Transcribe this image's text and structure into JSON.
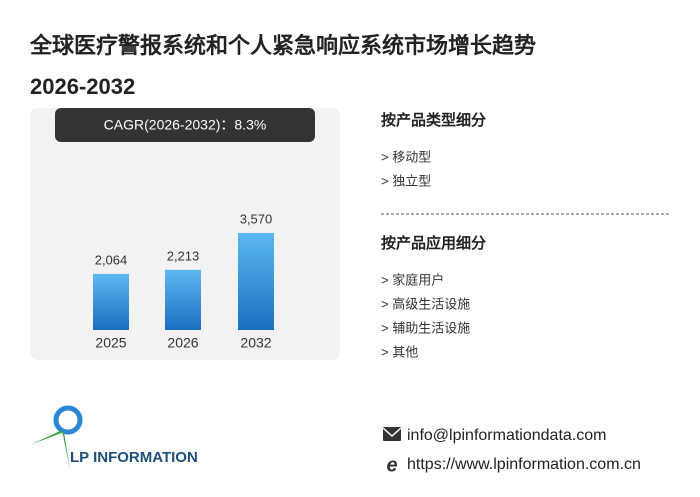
{
  "chart_data": {
    "type": "bar",
    "title": "全球医疗警报系统和个人紧急响应系统市场增长趋势",
    "subtitle": "2026-2032",
    "annotation": "CAGR(2026-2032)：8.3%",
    "categories": [
      "2025",
      "2026",
      "2032"
    ],
    "values": [
      2064,
      2213,
      3570
    ],
    "value_labels": [
      "2,064",
      "2,213",
      "3,570"
    ],
    "color": "#2a86d6"
  },
  "sections": [
    {
      "heading": "按产品类型细分",
      "items": [
        "> 移动型",
        "> 独立型"
      ]
    },
    {
      "heading": "按产品应用细分",
      "items": [
        "> 家庭用户",
        "> 高级生活设施",
        "> 辅助生活设施",
        "> 其他"
      ]
    }
  ],
  "logo": "LP INFORMATION",
  "contact": {
    "email": "info@lpinformationdata.com",
    "website": "https://www.lpinformation.com.cn"
  }
}
